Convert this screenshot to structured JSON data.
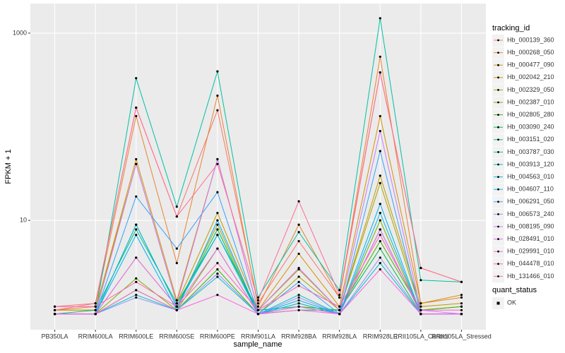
{
  "chart_data": {
    "type": "line",
    "x_label": "sample_name",
    "y_label": "FPKM + 1",
    "categories": [
      "PB350LA",
      "RRIM600LA",
      "RRIM600LE",
      "RRIM600SE",
      "RRIM600PE",
      "RRIM901LA",
      "RRIM928BA",
      "RRIM928LA",
      "RRIM928LE",
      "RRII105LA_Control",
      "RRII105LA_Stressed"
    ],
    "log_y": true,
    "ylim": [
      0.68,
      2070
    ],
    "yticks": [
      10,
      1000
    ],
    "grid": true,
    "legend_title": "tracking_id",
    "legend_position": "right",
    "point_legend_title": "quant_status",
    "point_legend_label": "OK",
    "point_color": "#000000",
    "series": [
      {
        "name": "Hb_000139_360",
        "color": "#F8766D",
        "values": [
          1.2,
          1.3,
          160,
          11,
          150,
          1.3,
          6,
          1.5,
          380,
          3.1,
          2.2
        ]
      },
      {
        "name": "Hb_000268_050",
        "color": "#EA8331",
        "values": [
          1.1,
          1.2,
          130,
          3.5,
          215,
          1.2,
          9,
          1.5,
          560,
          1.3,
          1.5
        ]
      },
      {
        "name": "Hb_000477_090",
        "color": "#D89000",
        "values": [
          1.1,
          1.1,
          45,
          1.4,
          45,
          1.1,
          4.4,
          1.2,
          130,
          1.3,
          1.6
        ]
      },
      {
        "name": "Hb_002042_210",
        "color": "#C09B00",
        "values": [
          1.1,
          1.1,
          40,
          1.3,
          12,
          1.1,
          3,
          1.1,
          30,
          1.2,
          1.3
        ]
      },
      {
        "name": "Hb_002329_050",
        "color": "#A3A500",
        "values": [
          1.0,
          1.0,
          4,
          1.2,
          9,
          1.0,
          2.5,
          1.1,
          25,
          1.1,
          1.2
        ]
      },
      {
        "name": "Hb_002387_010",
        "color": "#7CAE00",
        "values": [
          1.0,
          1.0,
          2.4,
          1.1,
          5,
          1.0,
          1.3,
          1.0,
          10,
          1.0,
          1.0
        ]
      },
      {
        "name": "Hb_002805_280",
        "color": "#39B600",
        "values": [
          1.0,
          1.0,
          1.8,
          1.1,
          3,
          1.0,
          1.2,
          1.1,
          6,
          1.1,
          1.2
        ]
      },
      {
        "name": "Hb_003090_240",
        "color": "#00BB4E",
        "values": [
          1.0,
          1.0,
          9,
          1.2,
          8,
          1.0,
          1.1,
          1.1,
          5,
          1.0,
          1.0
        ]
      },
      {
        "name": "Hb_003151_020",
        "color": "#00BF7D",
        "values": [
          1.0,
          1.1,
          8,
          1.3,
          7,
          1.1,
          1.2,
          1.0,
          8,
          1.0,
          1.0
        ]
      },
      {
        "name": "Hb_003787_030",
        "color": "#00C1A3",
        "values": [
          1.0,
          1.0,
          330,
          14,
          390,
          1.5,
          7.5,
          1.8,
          1440,
          2.3,
          2.2
        ]
      },
      {
        "name": "Hb_003913_120",
        "color": "#00BFC4",
        "values": [
          1.0,
          1.0,
          1.6,
          1.1,
          2.5,
          1.0,
          1.6,
          1.0,
          3.5,
          1.0,
          1.0
        ]
      },
      {
        "name": "Hb_004563_010",
        "color": "#00BAE0",
        "values": [
          1.0,
          1.0,
          9,
          1.2,
          7,
          1.0,
          1.3,
          1.0,
          12,
          1.0,
          1.0
        ]
      },
      {
        "name": "Hb_004607_110",
        "color": "#00B0F6",
        "values": [
          1.0,
          1.0,
          7,
          1.1,
          10,
          1.0,
          1.4,
          1.0,
          15,
          1.0,
          1.0
        ]
      },
      {
        "name": "Hb_006291_050",
        "color": "#35A2FF",
        "values": [
          1.0,
          1.0,
          18,
          5,
          20,
          1.0,
          2.2,
          1.0,
          55,
          1.0,
          1.0
        ]
      },
      {
        "name": "Hb_006573_240",
        "color": "#9590FF",
        "values": [
          1.0,
          1.0,
          1.5,
          1.1,
          2.7,
          1.0,
          1.5,
          1.0,
          4,
          1.0,
          1.0
        ]
      },
      {
        "name": "Hb_008195_090",
        "color": "#C77CFF",
        "values": [
          1.0,
          1.0,
          40,
          1.3,
          45,
          1.1,
          3.1,
          1.1,
          90,
          1.1,
          1.0
        ]
      },
      {
        "name": "Hb_028491_010",
        "color": "#E76BF3",
        "values": [
          1.0,
          1.0,
          4,
          1.2,
          5,
          1.0,
          1.2,
          1.0,
          8,
          1.0,
          1.0
        ]
      },
      {
        "name": "Hb_029991_010",
        "color": "#FA62DB",
        "values": [
          1.0,
          1.0,
          1.8,
          1.1,
          1.6,
          1.0,
          1.1,
          1.0,
          3,
          1.0,
          1.0
        ]
      },
      {
        "name": "Hb_044478_010",
        "color": "#FF62BC",
        "values": [
          1.2,
          1.2,
          2.2,
          1.2,
          3.5,
          1.1,
          2,
          1.2,
          7,
          1.1,
          1.1
        ]
      },
      {
        "name": "Hb_131466_010",
        "color": "#FF6C91",
        "values": [
          1.1,
          1.3,
          160,
          11,
          40,
          1.4,
          16,
          1.6,
          380,
          3.1,
          2.2
        ]
      }
    ]
  }
}
